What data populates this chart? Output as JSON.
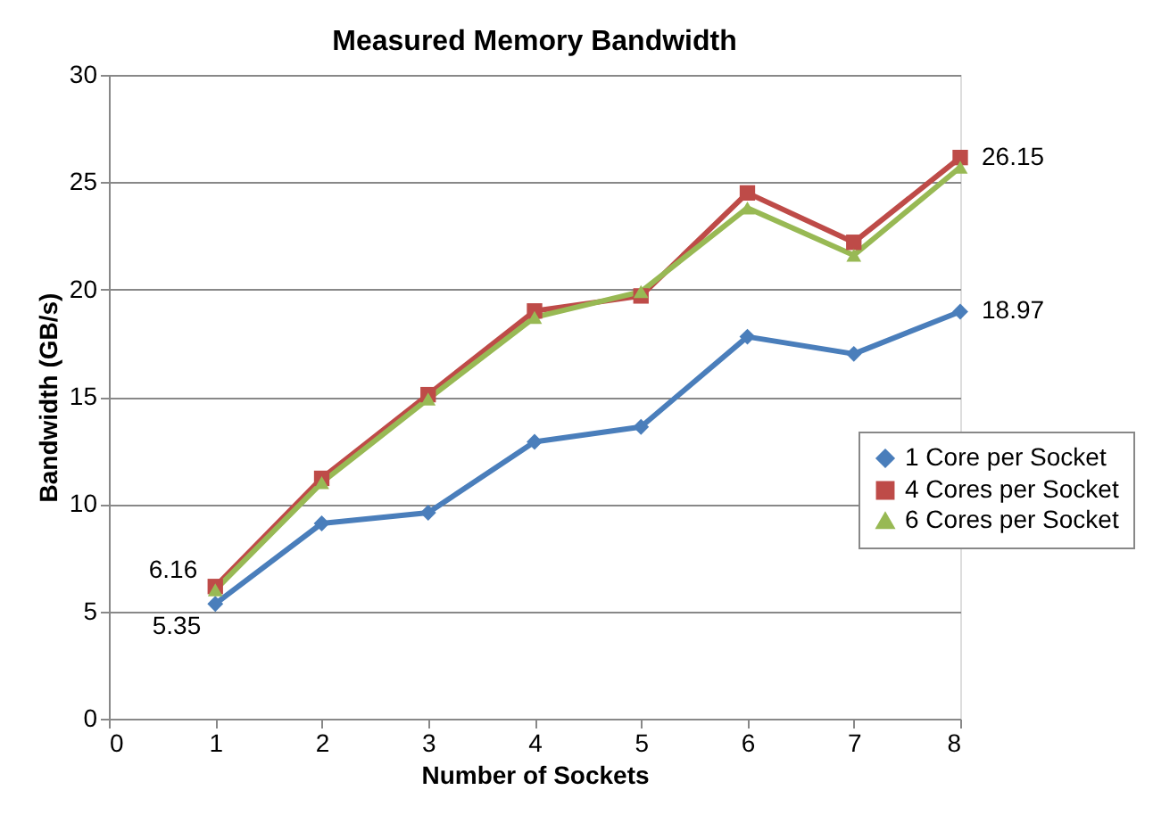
{
  "chart_data": {
    "type": "line",
    "title": "Measured Memory Bandwidth",
    "xlabel": "Number of Sockets",
    "ylabel": "Bandwidth (GB/s)",
    "x": [
      1,
      2,
      3,
      4,
      5,
      6,
      7,
      8
    ],
    "series": [
      {
        "name": "1 Core per Socket",
        "color": "#4a7ebb",
        "marker": "diamond",
        "values": [
          5.35,
          9.1,
          9.6,
          12.9,
          13.6,
          17.8,
          17.0,
          18.97
        ],
        "value_labels": [
          "5.35",
          null,
          null,
          null,
          null,
          null,
          null,
          "18.97"
        ]
      },
      {
        "name": "4 Cores per Socket",
        "color": "#be4b48",
        "marker": "square",
        "values": [
          6.16,
          11.2,
          15.1,
          19.0,
          19.7,
          24.5,
          22.2,
          26.15
        ],
        "value_labels": [
          "6.16",
          null,
          null,
          null,
          null,
          null,
          null,
          "26.15"
        ]
      },
      {
        "name": "6 Cores per Socket",
        "color": "#98b954",
        "marker": "triangle",
        "values": [
          6.0,
          11.0,
          14.9,
          18.7,
          19.9,
          23.8,
          21.6,
          25.7
        ]
      }
    ],
    "xlim": [
      0,
      8
    ],
    "xticks": [
      0,
      1,
      2,
      3,
      4,
      5,
      6,
      7,
      8
    ],
    "ylim": [
      0,
      30
    ],
    "yticks": [
      0,
      5,
      10,
      15,
      20,
      25,
      30
    ],
    "grid": "y",
    "legend": "right",
    "line_style": "solid"
  }
}
